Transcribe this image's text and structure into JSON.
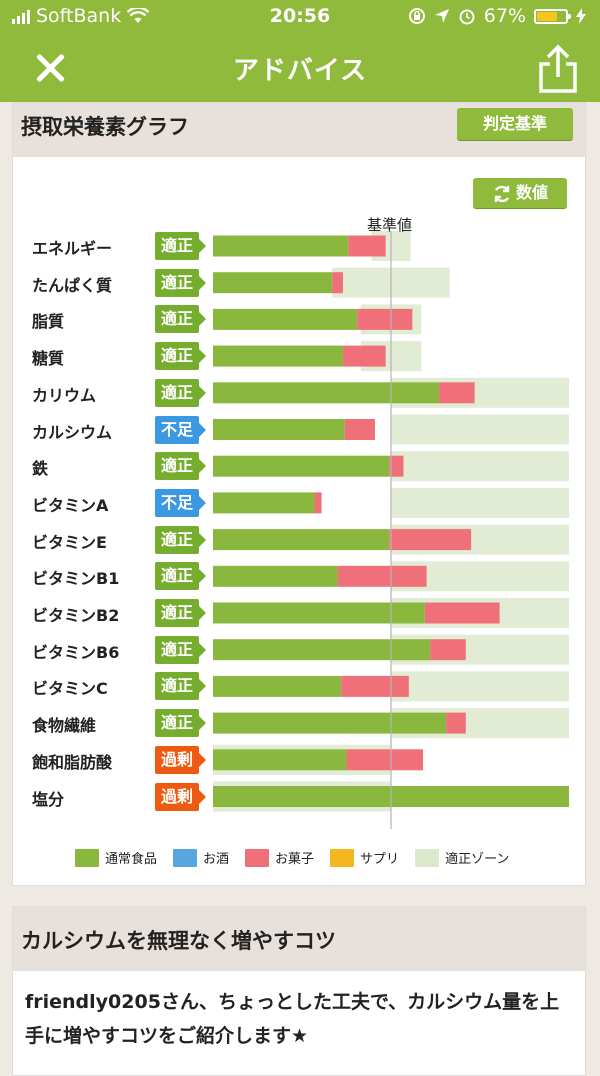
{
  "status": {
    "carrier": "SoftBank",
    "time": "20:56",
    "battery": "67%",
    "battery_level": 0.67
  },
  "nav": {
    "title": "アドバイス",
    "close_icon": "close-icon",
    "share_icon": "share-icon"
  },
  "card1": {
    "title": "摂取栄養素グラフ",
    "criteria_button": "判定基準",
    "values_button": "数値",
    "reference_label": "基準値"
  },
  "colors": {
    "brand_green": "#8fba3c",
    "normal_food": "#8ab83e",
    "alcohol": "#57a6e0",
    "snack": "#f0707a",
    "supplement": "#f5b71e",
    "zone": "#dde8cc",
    "badge_ok": "#77ad2e",
    "badge_low": "#3c98e0",
    "badge_high": "#ee5a12"
  },
  "chart_data": {
    "type": "bar",
    "orientation": "horizontal",
    "stacked": true,
    "reference_label": "基準値",
    "reference_value": 100,
    "xlim": [
      0,
      200
    ],
    "categories": [
      "エネルギー",
      "たんぱく質",
      "脂質",
      "糖質",
      "カリウム",
      "カルシウム",
      "鉄",
      "ビタミンA",
      "ビタミンE",
      "ビタミンB1",
      "ビタミンB2",
      "ビタミンB6",
      "ビタミンC",
      "食物繊維",
      "飽和脂肪酸",
      "塩分"
    ],
    "status_labels": [
      "適正",
      "適正",
      "適正",
      "適正",
      "適正",
      "不足",
      "適正",
      "不足",
      "適正",
      "適正",
      "適正",
      "適正",
      "適正",
      "適正",
      "過剰",
      "過剰"
    ],
    "status_kinds": [
      "ok",
      "ok",
      "ok",
      "ok",
      "ok",
      "low",
      "ok",
      "low",
      "ok",
      "ok",
      "ok",
      "ok",
      "ok",
      "ok",
      "high",
      "high"
    ],
    "series": [
      {
        "name": "通常食品",
        "values": [
          76,
          67,
          81,
          73,
          127,
          74,
          99,
          57,
          99,
          70,
          119,
          122,
          72,
          131,
          75,
          200
        ]
      },
      {
        "name": "お酒",
        "values": [
          0,
          0,
          0,
          0,
          0,
          0,
          0,
          0,
          0,
          0,
          0,
          0,
          0,
          0,
          0,
          0
        ]
      },
      {
        "name": "お菓子",
        "values": [
          21,
          6,
          31,
          24,
          20,
          17,
          8,
          4,
          46,
          50,
          42,
          20,
          38,
          11,
          43,
          0
        ]
      },
      {
        "name": "サプリ",
        "values": [
          0,
          0,
          0,
          0,
          0,
          0,
          0,
          0,
          0,
          0,
          0,
          0,
          0,
          0,
          0,
          0
        ]
      }
    ],
    "zones": [
      [
        89,
        111
      ],
      [
        67,
        133
      ],
      [
        83,
        117
      ],
      [
        83,
        117
      ],
      [
        100,
        200
      ],
      [
        100,
        200
      ],
      [
        100,
        200
      ],
      [
        100,
        200
      ],
      [
        100,
        200
      ],
      [
        100,
        200
      ],
      [
        100,
        200
      ],
      [
        100,
        200
      ],
      [
        100,
        200
      ],
      [
        100,
        200
      ],
      [
        0,
        100
      ],
      [
        0,
        100
      ]
    ],
    "legend": [
      "通常食品",
      "お酒",
      "お菓子",
      "サプリ",
      "適正ゾーン"
    ],
    "legend_placement": "bottom"
  },
  "card2": {
    "title": "カルシウムを無理なく増やすコツ",
    "body": "friendly0205さん、ちょっとした工夫で、カルシウム量を上手に増やすコツをご紹介します★"
  }
}
